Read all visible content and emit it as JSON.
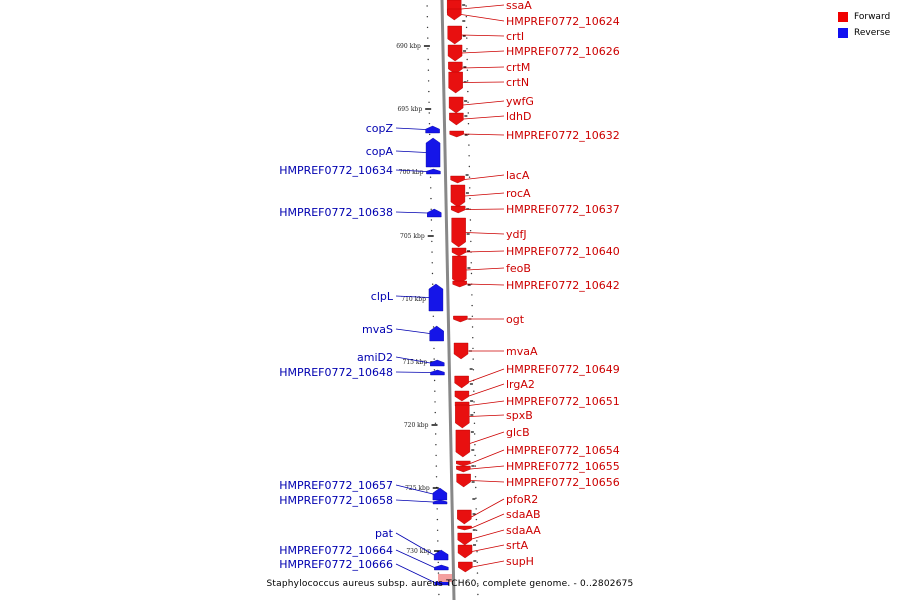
{
  "legend": [
    {
      "label": "Forward",
      "color": "#f00000"
    },
    {
      "label": "Reverse",
      "color": "#1010f0"
    }
  ],
  "caption": "Staphylococcus aureus subsp. aureus TCH60, complete genome. - 0..2802675",
  "colors": {
    "forward": "#e81010",
    "reverse": "#1515e8",
    "forward_label": "#cc0000",
    "reverse_label": "#0000b0"
  },
  "scale_labels": [
    "690 kbp",
    "695 kbp",
    "700 kbp",
    "705 kbp",
    "710 kbp",
    "715 kbp",
    "720 kbp",
    "725 kbp",
    "730 kbp"
  ],
  "forward_genes": [
    "ssaA",
    "HMPREF0772_10624",
    "crtI",
    "HMPREF0772_10626",
    "crtM",
    "crtN",
    "ywfG",
    "ldhD",
    "HMPREF0772_10632",
    "lacA",
    "rocA",
    "HMPREF0772_10637",
    "ydfJ",
    "HMPREF0772_10640",
    "feoB",
    "HMPREF0772_10642",
    "ogt",
    "mvaA",
    "HMPREF0772_10649",
    "lrgA2",
    "HMPREF0772_10651",
    "spxB",
    "glcB",
    "HMPREF0772_10654",
    "HMPREF0772_10655",
    "HMPREF0772_10656",
    "pfoR2",
    "sdaAB",
    "sdaAA",
    "srtA",
    "supH"
  ],
  "reverse_genes": [
    "copZ",
    "copA",
    "HMPREF0772_10634",
    "HMPREF0772_10638",
    "clpL",
    "mvaS",
    "amiD2",
    "HMPREF0772_10648",
    "HMPREF0772_10657",
    "HMPREF0772_10658",
    "pat",
    "HMPREF0772_10664",
    "HMPREF0772_10666"
  ]
}
